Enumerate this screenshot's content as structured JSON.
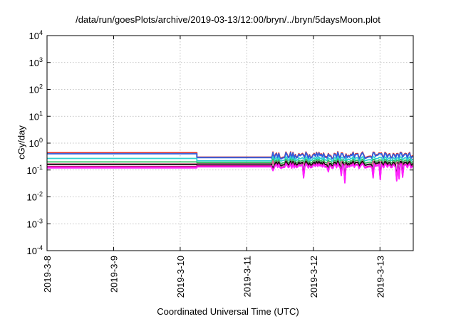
{
  "chart_data": {
    "type": "line",
    "title": "/data/run/goesPlots/archive/2019-03-13/12:00/bryn/../bryn/5daysMoon.plot",
    "xlabel": "Coordinated Universal Time (UTC)",
    "ylabel": "cGy/day",
    "yscale": "log",
    "ylim": [
      0.0001,
      10000
    ],
    "xlim": [
      "2019-03-08T00:00",
      "2019-03-13T12:00"
    ],
    "x_ticks": [
      "2019-3-8",
      "2019-3-9",
      "2019-3-10",
      "2019-3-11",
      "2019-3-12",
      "2019-3-13"
    ],
    "y_ticks": [
      {
        "base": "10",
        "exp": "-4",
        "value": 0.0001
      },
      {
        "base": "10",
        "exp": "-3",
        "value": 0.001
      },
      {
        "base": "10",
        "exp": "-2",
        "value": 0.01
      },
      {
        "base": "10",
        "exp": "-1",
        "value": 0.1
      },
      {
        "base": "10",
        "exp": "0",
        "value": 1
      },
      {
        "base": "10",
        "exp": "1",
        "value": 10
      },
      {
        "base": "10",
        "exp": "2",
        "value": 100
      },
      {
        "base": "10",
        "exp": "3",
        "value": 1000
      },
      {
        "base": "10",
        "exp": "4",
        "value": 10000
      }
    ],
    "grid": true,
    "legend": "none",
    "series": [
      {
        "color": "#e0302a",
        "level_early": 0.44,
        "level_mid": 0.3,
        "level_late": 0.36
      },
      {
        "color": "#3060e0",
        "level_early": 0.4,
        "level_mid": 0.29,
        "level_late": 0.34
      },
      {
        "color": "#30d0d0",
        "level_early": 0.27,
        "level_mid": 0.22,
        "level_late": 0.26
      },
      {
        "color": "#30c060",
        "level_early": 0.2,
        "level_mid": 0.19,
        "level_late": 0.21
      },
      {
        "color": "#e06090",
        "level_early": 0.17,
        "level_mid": 0.17,
        "level_late": 0.18
      },
      {
        "color": "#101010",
        "level_early": 0.16,
        "level_mid": 0.165,
        "level_late": 0.175
      },
      {
        "color": "#d01090",
        "level_early": 0.135,
        "level_mid": 0.145,
        "level_late": 0.15
      },
      {
        "color": "#ff20ff",
        "level_early": 0.12,
        "level_mid": 0.13,
        "level_late": 0.14
      }
    ],
    "step_time": "2019-03-10T06:00",
    "noise_start": "2019-03-11T09:00"
  }
}
